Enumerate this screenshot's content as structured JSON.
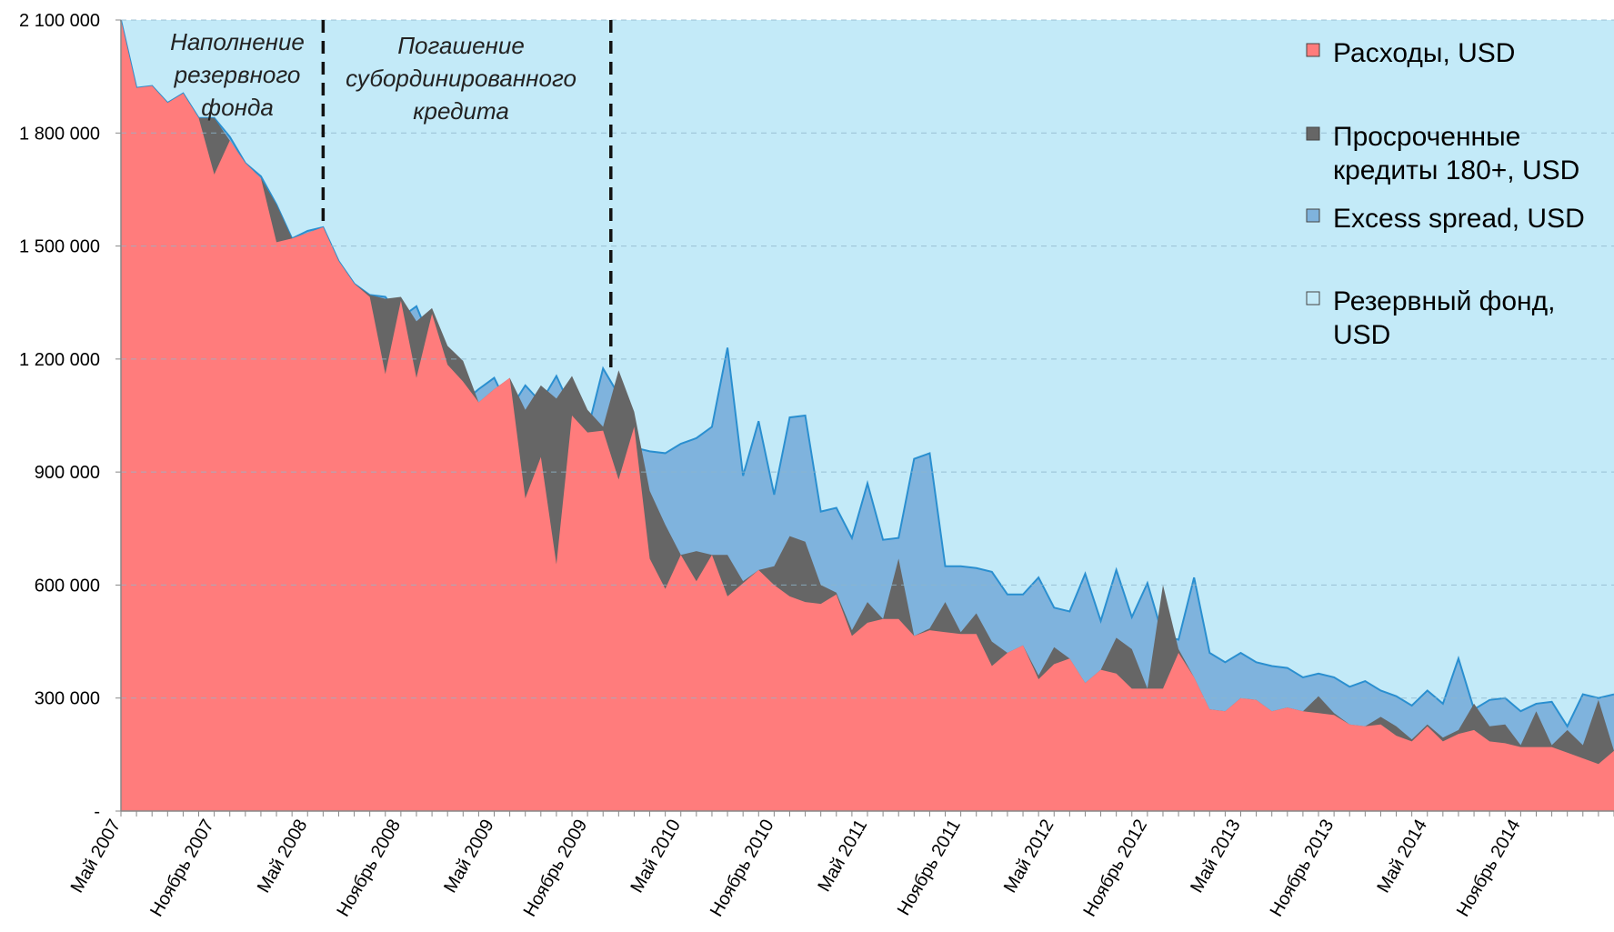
{
  "chart_data": {
    "type": "area",
    "x_start": "Май 2007",
    "x_end": "Июнь 2015",
    "x_tick_labels": [
      "Май 2007",
      "Ноябрь 2007",
      "Май 2008",
      "Ноябрь 2008",
      "Май 2009",
      "Ноябрь 2009",
      "Май 2010",
      "Ноябрь 2010",
      "Май 2011",
      "Ноябрь 2011",
      "Май 2012",
      "Ноябрь 2012",
      "Май 2013",
      "Ноябрь 2013",
      "Май 2014",
      "Ноябрь 2014"
    ],
    "y_tick_labels": [
      "-",
      "300 000",
      "600 000",
      "900 000",
      "1 200 000",
      "1 500 000",
      "1 800 000",
      "2 100 000"
    ],
    "ylim": [
      0,
      2100000
    ],
    "grid": "horizontal dashed",
    "legend_position": "top-right",
    "legend": [
      {
        "label": "Расходы, USD",
        "color": "#ff7c7c"
      },
      {
        "label": "Просроченные кредиты 180+, USD",
        "color": "#666666"
      },
      {
        "label": "Excess spread, USD",
        "color": "#7fb3dd"
      },
      {
        "label": "Резервный фонд, USD",
        "color": "#c3eaf8"
      }
    ],
    "annotations": [
      {
        "text": "Наполнение резервного фонда",
        "lines": [
          "Наполнение",
          "резервного",
          "фонда"
        ]
      },
      {
        "text": "Погашение субординированного кредита",
        "lines": [
          "Погашение",
          "субординированного",
          "кредита"
        ]
      }
    ],
    "dividers_x": [
      "Июнь 2008",
      "Декабрь 2009"
    ],
    "series": [
      {
        "name": "Расходы, USD",
        "values": [
          2100000,
          1920000,
          1925000,
          1880000,
          1905000,
          1840000,
          1690000,
          1780000,
          1720000,
          1680000,
          1510000,
          1520000,
          1535000,
          1550000,
          1460000,
          1400000,
          1365000,
          1160000,
          1355000,
          1150000,
          1320000,
          1185000,
          1140000,
          1085000,
          1120000,
          1150000,
          830000,
          940000,
          655000,
          1050000,
          1005000,
          1010000,
          880000,
          1020000,
          670000,
          590000,
          680000,
          610000,
          680000,
          570000,
          605000,
          640000,
          600000,
          570000,
          555000,
          550000,
          575000,
          465000,
          500000,
          510000,
          510000,
          465000,
          480000,
          475000,
          470000,
          470000,
          385000,
          420000,
          440000,
          350000,
          390000,
          405000,
          340000,
          375000,
          365000,
          325000,
          325000,
          325000,
          420000,
          355000,
          270000,
          265000,
          300000,
          295000,
          265000,
          275000,
          265000,
          260000,
          255000,
          230000,
          225000,
          230000,
          200000,
          185000,
          225000,
          185000,
          205000,
          215000,
          185000,
          180000,
          170000,
          170000,
          170000,
          155000,
          140000,
          125000,
          160000
        ],
        "color": "#ff7c7c"
      },
      {
        "name": "Просроченные кредиты 180+, USD",
        "values": [
          2100000,
          1920000,
          1925000,
          1880000,
          1905000,
          1840000,
          1840000,
          1780000,
          1720000,
          1680000,
          1610000,
          1520000,
          1535000,
          1550000,
          1460000,
          1400000,
          1370000,
          1360000,
          1365000,
          1300000,
          1335000,
          1235000,
          1195000,
          1085000,
          1120000,
          1150000,
          1065000,
          1130000,
          1095000,
          1155000,
          1065000,
          1020000,
          1170000,
          1060000,
          850000,
          760000,
          680000,
          690000,
          680000,
          680000,
          610000,
          640000,
          650000,
          730000,
          715000,
          600000,
          580000,
          480000,
          555000,
          510000,
          670000,
          465000,
          485000,
          555000,
          475000,
          525000,
          450000,
          420000,
          440000,
          360000,
          435000,
          405000,
          340000,
          375000,
          460000,
          430000,
          325000,
          600000,
          430000,
          355000,
          270000,
          265000,
          300000,
          295000,
          265000,
          275000,
          265000,
          305000,
          260000,
          230000,
          225000,
          250000,
          225000,
          190000,
          230000,
          195000,
          215000,
          285000,
          225000,
          230000,
          175000,
          265000,
          175000,
          215000,
          175000,
          295000,
          160000
        ],
        "color": "#666666"
      },
      {
        "name": "Excess spread, USD",
        "values": [
          2100000,
          1920000,
          1925000,
          1880000,
          1905000,
          1840000,
          1840000,
          1790000,
          1720000,
          1685000,
          1610000,
          1520000,
          1540000,
          1550000,
          1460000,
          1400000,
          1370000,
          1365000,
          1310000,
          1340000,
          1240000,
          1200000,
          1085000,
          1120000,
          1150000,
          1065000,
          1130000,
          1085000,
          1155000,
          1065000,
          1010000,
          1175000,
          1105000,
          965000,
          955000,
          950000,
          975000,
          990000,
          1020000,
          1230000,
          890000,
          1035000,
          840000,
          1045000,
          1050000,
          795000,
          805000,
          725000,
          870000,
          720000,
          725000,
          935000,
          950000,
          650000,
          650000,
          645000,
          635000,
          575000,
          575000,
          620000,
          540000,
          530000,
          630000,
          505000,
          640000,
          515000,
          605000,
          465000,
          455000,
          620000,
          420000,
          395000,
          420000,
          395000,
          385000,
          380000,
          355000,
          365000,
          355000,
          330000,
          345000,
          320000,
          305000,
          280000,
          320000,
          285000,
          405000,
          270000,
          295000,
          300000,
          265000,
          285000,
          290000,
          225000,
          310000,
          300000,
          310000
        ],
        "color": "#7fb3dd"
      },
      {
        "name": "Резервный фонд, USD",
        "values": [
          2100000,
          2100000,
          2100000,
          2100000,
          2100000,
          2100000,
          2100000,
          2100000,
          2100000,
          2100000,
          2100000,
          2100000,
          2100000,
          2100000,
          2100000,
          2100000,
          2100000,
          2100000,
          2100000,
          2100000,
          2100000,
          2100000,
          2100000,
          2100000,
          2100000,
          2100000,
          2100000,
          2100000,
          2100000,
          2100000,
          2100000,
          2100000,
          2100000,
          2100000,
          2100000,
          2100000,
          2100000,
          2100000,
          2100000,
          2100000,
          2100000,
          2100000,
          2100000,
          2100000,
          2100000,
          2100000,
          2100000,
          2100000,
          2100000,
          2100000,
          2100000,
          2100000,
          2100000,
          2100000,
          2100000,
          2100000,
          2100000,
          2100000,
          2100000,
          2100000,
          2100000,
          2100000,
          2100000,
          2100000,
          2100000,
          2100000,
          2100000,
          2100000,
          2100000,
          2100000,
          2100000,
          2100000,
          2100000,
          2100000,
          2100000,
          2100000,
          2100000,
          2100000,
          2100000,
          2100000,
          2100000,
          2100000,
          2100000,
          2100000,
          2100000,
          2100000,
          2100000,
          2100000,
          2100000,
          2100000,
          2100000,
          2100000,
          2100000,
          2100000,
          2100000,
          2100000,
          2100000
        ],
        "color": "#c3eaf8"
      }
    ]
  }
}
